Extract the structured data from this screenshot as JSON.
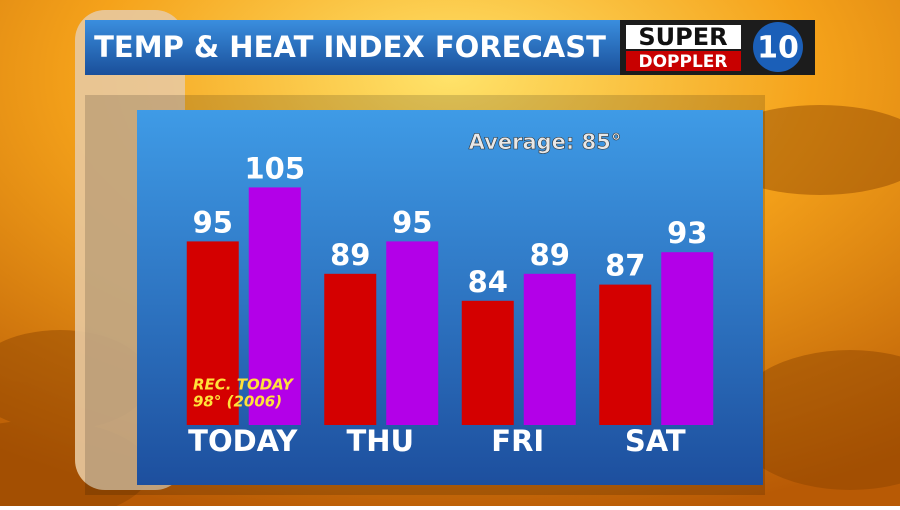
{
  "chart_data": {
    "type": "bar",
    "title": "TEMP & HEAT INDEX FORECAST",
    "categories": [
      "TODAY",
      "THU",
      "FRI",
      "SAT"
    ],
    "series": [
      {
        "color": "#d40000",
        "values": [
          95,
          89,
          84,
          87
        ]
      },
      {
        "color": "#b300e8",
        "values": [
          105,
          95,
          89,
          93
        ]
      }
    ],
    "ylim": [
      61,
      110
    ],
    "annotations": [
      "Average: 85°"
    ],
    "record_note": [
      "REC. TODAY",
      "98° (2006)"
    ]
  },
  "logo": {
    "top": "SUPER",
    "bottom": "DOPPLER",
    "number": "10"
  }
}
